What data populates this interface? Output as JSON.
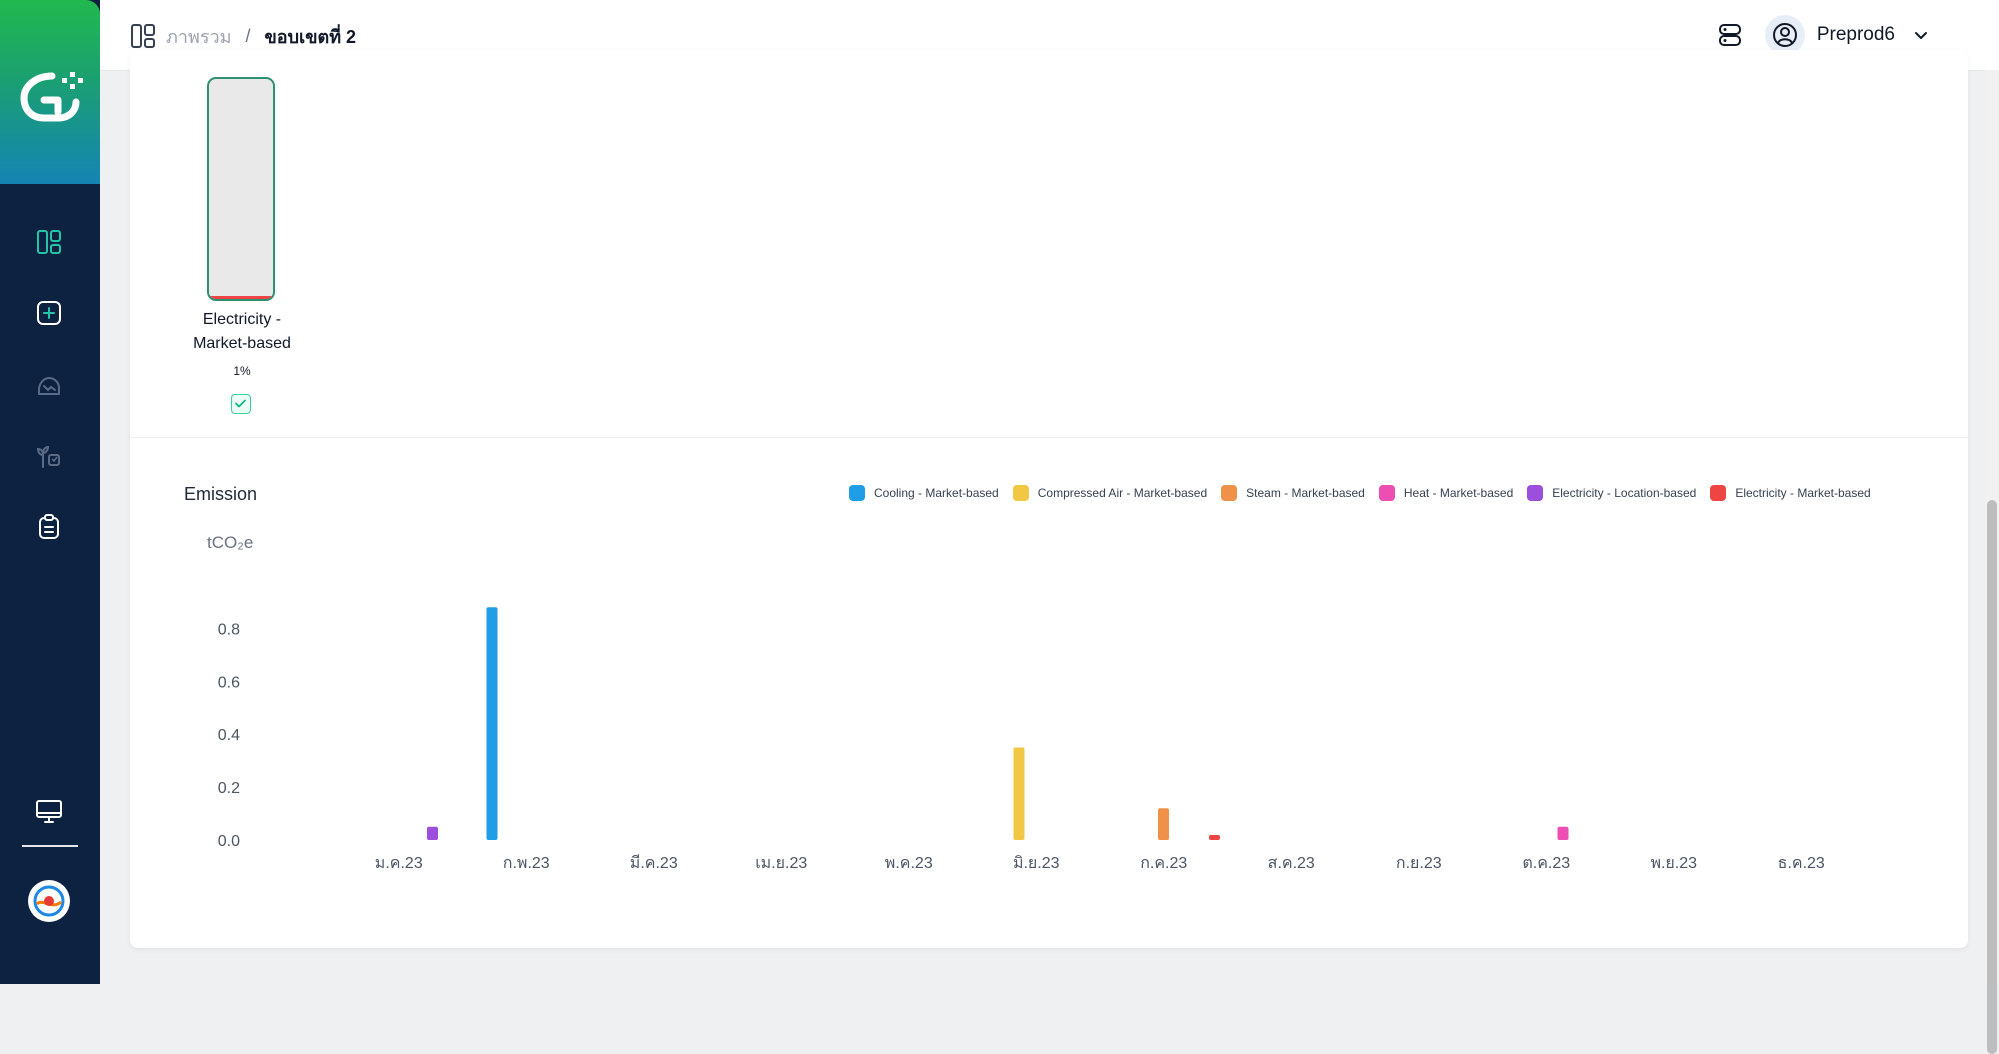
{
  "breadcrumb": {
    "item1": "ภาพรวม",
    "separator": "/",
    "item2": "ขอบเขตที่ 2"
  },
  "header": {
    "user_name": "Preprod6"
  },
  "sidebar": {
    "icons": [
      "dashboard-icon",
      "add-square-icon",
      "cloud-emission-icon",
      "plant-icon",
      "clipboard-icon",
      "monitor-icon"
    ]
  },
  "tank": {
    "label_line1": "Electricity -",
    "label_line2": "Market-based",
    "percent_text": "1%",
    "fill_fraction": 0.015,
    "fill_color": "#ef4444",
    "border_color": "#2f8f72"
  },
  "chart_section": {
    "title": "Emission",
    "unit": "tCO₂e"
  },
  "colors": {
    "Cooling - Market-based": "#1f9ee7",
    "Compressed Air - Market-based": "#f2c744",
    "Steam - Market-based": "#f0914a",
    "Heat - Market-based": "#ec4eb2",
    "Electricity - Location-based": "#9b4fdc",
    "Electricity - Market-based": "#ef4444"
  },
  "chart_data": {
    "type": "bar",
    "title": "Emission",
    "ylabel": "tCO₂e",
    "xlabel": "",
    "ylim": [
      0,
      0.9
    ],
    "yticks": [
      "0.0",
      "0.2",
      "0.4",
      "0.6",
      "0.8"
    ],
    "ytick_values": [
      0,
      0.2,
      0.4,
      0.6,
      0.8
    ],
    "categories": [
      "ม.ค.23",
      "ก.พ.23",
      "มี.ค.23",
      "เม.ย.23",
      "พ.ค.23",
      "มิ.ย.23",
      "ก.ค.23",
      "ส.ค.23",
      "ก.ย.23",
      "ต.ค.23",
      "พ.ย.23",
      "ธ.ค.23"
    ],
    "legend_position": "top-right",
    "grid": false,
    "series": [
      {
        "name": "Cooling - Market-based",
        "values": [
          0,
          0.88,
          0,
          0,
          0,
          0,
          0,
          0,
          0,
          0,
          0,
          0
        ]
      },
      {
        "name": "Compressed Air - Market-based",
        "values": [
          0,
          0,
          0,
          0,
          0,
          0.35,
          0,
          0,
          0,
          0,
          0,
          0
        ]
      },
      {
        "name": "Steam - Market-based",
        "values": [
          0,
          0,
          0,
          0,
          0,
          0,
          0.12,
          0,
          0,
          0,
          0,
          0
        ]
      },
      {
        "name": "Heat - Market-based",
        "values": [
          0,
          0,
          0,
          0,
          0,
          0,
          0,
          0,
          0,
          0.05,
          0,
          0
        ]
      },
      {
        "name": "Electricity - Location-based",
        "values": [
          0.05,
          0,
          0,
          0,
          0,
          0,
          0,
          0,
          0,
          0,
          0,
          0
        ]
      },
      {
        "name": "Electricity - Market-based",
        "values": [
          0,
          0,
          0,
          0,
          0,
          0,
          0.015,
          0,
          0,
          0,
          0,
          0
        ]
      }
    ]
  }
}
